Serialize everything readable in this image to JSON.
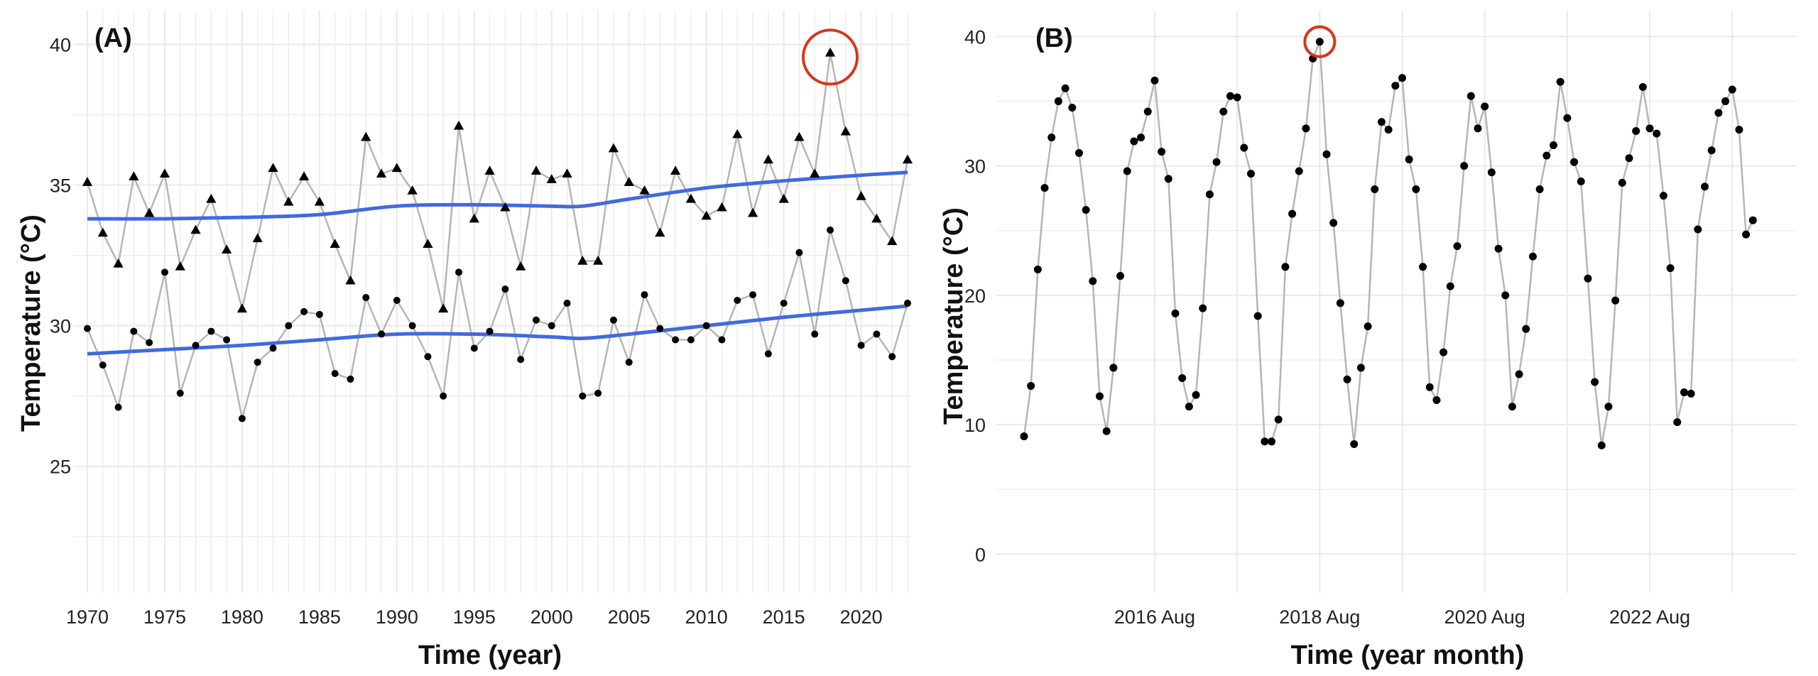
{
  "chart_data": [
    {
      "type": "line",
      "panel_label": "(A)",
      "title": "",
      "xlabel": "Time (year)",
      "ylabel": "Temperature (°C)",
      "xlim": [
        1970,
        2023
      ],
      "ylim": [
        20.5,
        41.2
      ],
      "x_ticks": [
        1970,
        1975,
        1980,
        1985,
        1990,
        1995,
        2000,
        2005,
        2010,
        2015,
        2020
      ],
      "y_ticks": [
        25,
        30,
        35,
        40
      ],
      "grid": true,
      "colors": {
        "points": "#000000",
        "connector": "#b5b5b5",
        "trend": "#4169e1",
        "highlight": "#d9351c"
      },
      "series": [
        {
          "marker": "triangle",
          "x": [
            1970,
            1971,
            1972,
            1973,
            1974,
            1975,
            1976,
            1977,
            1978,
            1979,
            1980,
            1981,
            1982,
            1983,
            1984,
            1985,
            1986,
            1987,
            1988,
            1989,
            1990,
            1991,
            1992,
            1993,
            1994,
            1995,
            1996,
            1997,
            1998,
            1999,
            2000,
            2001,
            2002,
            2003,
            2004,
            2005,
            2006,
            2007,
            2008,
            2009,
            2010,
            2011,
            2012,
            2013,
            2014,
            2015,
            2016,
            2017,
            2018,
            2019,
            2020,
            2021,
            2022,
            2023
          ],
          "values": [
            35.1,
            33.3,
            32.2,
            35.3,
            34.0,
            35.4,
            32.1,
            33.4,
            34.5,
            32.7,
            30.6,
            33.1,
            35.6,
            34.4,
            35.3,
            34.4,
            32.9,
            31.6,
            36.7,
            35.4,
            35.6,
            34.8,
            32.9,
            30.6,
            37.1,
            33.8,
            35.5,
            34.2,
            32.1,
            35.5,
            35.2,
            35.4,
            32.3,
            32.3,
            36.3,
            35.1,
            34.8,
            33.3,
            35.5,
            34.5,
            33.9,
            34.2,
            36.8,
            34.0,
            35.9,
            34.5,
            36.7,
            35.4,
            39.7,
            36.9,
            34.6,
            33.8,
            33.0,
            35.9
          ]
        },
        {
          "marker": "circle",
          "x": [
            1970,
            1971,
            1972,
            1973,
            1974,
            1975,
            1976,
            1977,
            1978,
            1979,
            1980,
            1981,
            1982,
            1983,
            1984,
            1985,
            1986,
            1987,
            1988,
            1989,
            1990,
            1991,
            1992,
            1993,
            1994,
            1995,
            1996,
            1997,
            1998,
            1999,
            2000,
            2001,
            2002,
            2003,
            2004,
            2005,
            2006,
            2007,
            2008,
            2009,
            2010,
            2011,
            2012,
            2013,
            2014,
            2015,
            2016,
            2017,
            2018,
            2019,
            2020,
            2021,
            2022,
            2023
          ],
          "values": [
            29.9,
            28.6,
            27.1,
            29.8,
            29.4,
            31.9,
            27.6,
            29.3,
            29.8,
            29.5,
            26.7,
            28.7,
            29.2,
            30.0,
            30.5,
            30.4,
            28.3,
            28.1,
            31.0,
            29.7,
            30.9,
            30.0,
            28.9,
            27.5,
            31.9,
            29.2,
            29.8,
            31.3,
            28.8,
            30.2,
            30.0,
            30.8,
            27.5,
            27.6,
            30.2,
            28.7,
            31.1,
            29.9,
            29.5,
            29.5,
            30.0,
            29.5,
            30.9,
            31.1,
            29.0,
            30.8,
            32.6,
            29.7,
            33.4,
            31.6,
            29.3,
            29.7,
            28.9,
            30.8
          ]
        }
      ],
      "trends": [
        {
          "x": [
            1970,
            1975,
            1980,
            1985,
            1990,
            1995,
            2000,
            2002,
            2005,
            2010,
            2015,
            2020,
            2023
          ],
          "values": [
            33.8,
            33.8,
            33.85,
            33.95,
            34.25,
            34.3,
            34.25,
            34.25,
            34.5,
            34.9,
            35.15,
            35.35,
            35.45
          ]
        },
        {
          "x": [
            1970,
            1975,
            1980,
            1985,
            1990,
            1995,
            2000,
            2002,
            2005,
            2010,
            2015,
            2020,
            2023
          ],
          "values": [
            29.0,
            29.15,
            29.3,
            29.5,
            29.7,
            29.7,
            29.6,
            29.55,
            29.7,
            30.0,
            30.3,
            30.55,
            30.7
          ]
        }
      ],
      "highlight": {
        "x": 2018,
        "y": 39.7
      }
    },
    {
      "type": "line",
      "panel_label": "(B)",
      "title": "",
      "xlabel": "Time (year month)",
      "ylabel": "Temperature (°C)",
      "xlim": [
        "2015-01",
        "2023-12"
      ],
      "ylim": [
        -3,
        42
      ],
      "x_ticks": [
        "2016-08",
        "2018-08",
        "2020-08",
        "2022-08"
      ],
      "x_tick_labels": [
        "2016 Aug",
        "2018 Aug",
        "2020 Aug",
        "2022 Aug"
      ],
      "y_ticks": [
        0,
        10,
        20,
        30,
        40
      ],
      "grid": true,
      "colors": {
        "points": "#000000",
        "connector": "#b5b5b5",
        "highlight": "#d9351c"
      },
      "series": [
        {
          "marker": "circle",
          "start_month": "2015-01",
          "values": [
            9.1,
            13.0,
            22.0,
            28.3,
            32.2,
            35.0,
            36.0,
            34.5,
            31.0,
            26.6,
            21.1,
            12.2,
            9.5,
            14.4,
            21.5,
            29.6,
            31.9,
            32.2,
            34.2,
            36.6,
            31.1,
            29.0,
            18.6,
            13.6,
            11.4,
            12.3,
            19.0,
            27.8,
            30.3,
            34.2,
            35.4,
            35.3,
            31.4,
            29.4,
            18.4,
            8.7,
            8.7,
            10.4,
            22.2,
            26.3,
            29.6,
            32.9,
            38.3,
            39.6,
            30.9,
            25.6,
            19.4,
            13.5,
            8.5,
            14.4,
            17.6,
            28.2,
            33.4,
            32.8,
            36.2,
            36.8,
            30.5,
            28.2,
            22.2,
            12.9,
            11.9,
            15.6,
            20.7,
            23.8,
            30.0,
            35.4,
            32.9,
            34.6,
            29.5,
            23.6,
            20.0,
            11.4,
            13.9,
            17.4,
            23.0,
            28.2,
            30.8,
            31.6,
            36.5,
            33.7,
            30.3,
            28.8,
            21.3,
            13.3,
            8.4,
            11.4,
            19.6,
            28.7,
            30.6,
            32.7,
            36.1,
            32.9,
            32.5,
            27.7,
            22.1,
            10.2,
            12.5,
            12.4,
            25.1,
            28.4,
            31.2,
            34.1,
            35.0,
            35.9,
            32.8,
            24.7,
            25.8
          ]
        }
      ],
      "highlight": {
        "x": "2018-08",
        "y": 39.6
      }
    }
  ]
}
